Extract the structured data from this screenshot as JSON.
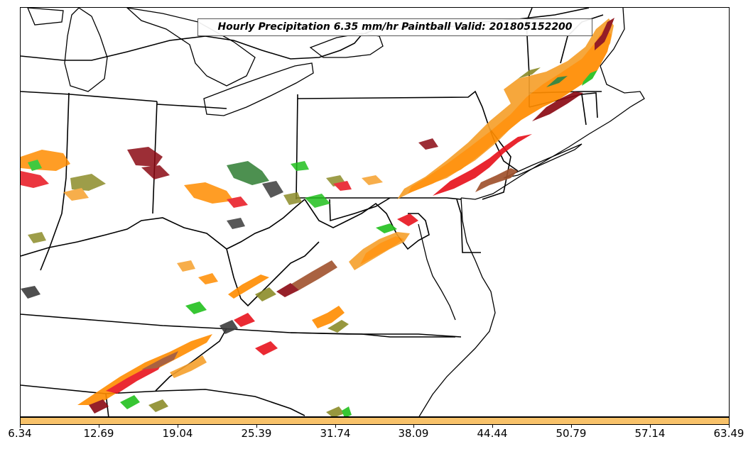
{
  "title": "Hourly Precipitation 6.35 mm/hr Paintball Valid: 201805152200",
  "colorbar": {
    "color": "#f8c26a",
    "ticks": [
      "6.34",
      "12.69",
      "19.04",
      "25.39",
      "31.74",
      "38.09",
      "44.44",
      "50.79",
      "57.14",
      "63.49"
    ]
  },
  "colors": {
    "orange": "#ff8c00",
    "light_orange": "#f6a02c",
    "red": "#e8141e",
    "dark_red": "#8b0a14",
    "brown": "#a0522d",
    "green": "#22c01e",
    "dark_green": "#2e7d32",
    "olive": "#8c8c2a",
    "dark_gray": "#3c3c3c",
    "boundary": "#000000"
  }
}
